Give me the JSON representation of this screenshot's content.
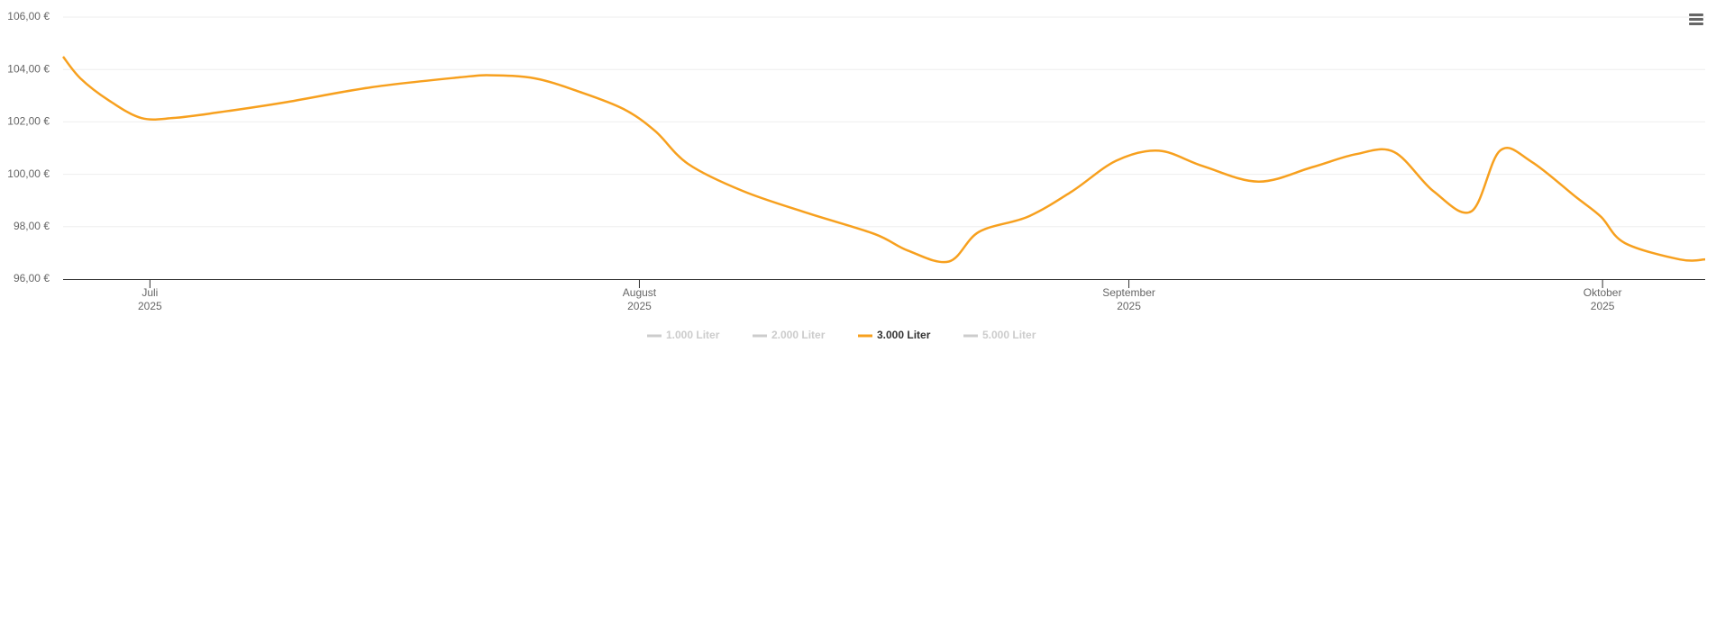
{
  "chart_data": {
    "type": "line",
    "x": [
      -5.5,
      -4.4,
      -2.6,
      -0.55,
      1.5,
      4.3,
      8.5,
      14,
      19.6,
      21.6,
      24.4,
      27.2,
      30,
      32,
      34.1,
      37.6,
      41.7,
      45.9,
      48,
      50.6,
      52.5,
      55.6,
      58.4,
      61.2,
      63.9,
      66.7,
      70.2,
      73.6,
      76.4,
      78.8,
      81.3,
      83.7,
      85.5,
      87.5,
      90.3,
      91.9,
      93.4,
      96.9,
      98.5
    ],
    "series": [
      {
        "name": "1.000 Liter",
        "color": "#cccccc",
        "visible": false
      },
      {
        "name": "2.000 Liter",
        "color": "#cccccc",
        "visible": false
      },
      {
        "name": "3.000 Liter",
        "color": "#f7a01e",
        "visible": true,
        "values": [
          104.49,
          103.66,
          102.82,
          102.15,
          102.15,
          102.36,
          102.74,
          103.32,
          103.7,
          103.78,
          103.66,
          103.15,
          102.49,
          101.65,
          100.39,
          99.35,
          98.51,
          97.72,
          97.09,
          96.67,
          97.8,
          98.38,
          99.35,
          100.52,
          100.9,
          100.31,
          99.72,
          100.27,
          100.77,
          100.85,
          99.35,
          98.59,
          100.9,
          100.48,
          99.14,
          98.38,
          97.38,
          96.75,
          96.75
        ]
      },
      {
        "name": "5.000 Liter",
        "color": "#cccccc",
        "visible": false
      }
    ],
    "xlim": [
      -5.5,
      98.5
    ],
    "xticks": [
      {
        "value": 0,
        "label": [
          "Juli",
          "2025"
        ]
      },
      {
        "value": 31,
        "label": [
          "August",
          "2025"
        ]
      },
      {
        "value": 62,
        "label": [
          "September",
          "2025"
        ]
      },
      {
        "value": 92,
        "label": [
          "Oktober",
          "2025"
        ]
      }
    ],
    "ylim": [
      96,
      106
    ],
    "yticks": [
      {
        "value": 96,
        "label": "96,00 €"
      },
      {
        "value": 98,
        "label": "98,00 €"
      },
      {
        "value": 100,
        "label": "100,00 €"
      },
      {
        "value": 102,
        "label": "102,00 €"
      },
      {
        "value": 104,
        "label": "104,00 €"
      },
      {
        "value": 106,
        "label": "106,00 €"
      }
    ],
    "grid": true
  }
}
